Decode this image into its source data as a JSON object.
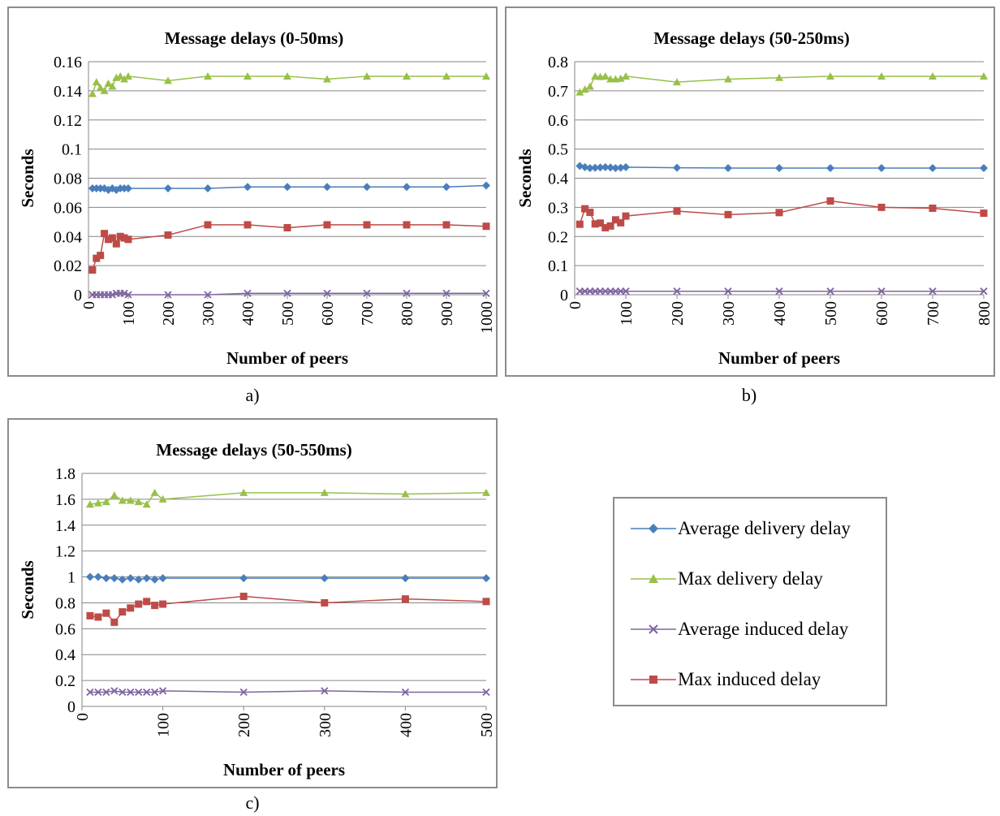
{
  "colors": {
    "avg_delivery": "#4a7ebb",
    "max_delivery": "#98c04a",
    "avg_induced": "#8064a2",
    "max_induced": "#be4b48",
    "grid": "#868686",
    "frame": "#8c8c8c"
  },
  "legend": {
    "placement": "right of panel c",
    "items": [
      {
        "series_key": "avg_delivery",
        "label": "Average delivery delay",
        "marker": "diamond"
      },
      {
        "series_key": "max_delivery",
        "label": "Max delivery delay",
        "marker": "triangle"
      },
      {
        "series_key": "avg_induced",
        "label": "Average induced delay",
        "marker": "x"
      },
      {
        "series_key": "max_induced",
        "label": "Max induced delay",
        "marker": "square"
      }
    ]
  },
  "chart_data": [
    {
      "type": "line",
      "caption": "a)",
      "title": "Message delays (0-50ms)",
      "xlabel": "Number of peers",
      "ylabel": "Seconds",
      "xlim": [
        0,
        1000
      ],
      "ylim": [
        0,
        0.16
      ],
      "xticks": [
        0,
        100,
        200,
        300,
        400,
        500,
        600,
        700,
        800,
        900,
        1000
      ],
      "yticks": [
        0,
        0.02,
        0.04,
        0.06,
        0.08,
        0.1,
        0.12,
        0.14,
        0.16
      ],
      "grid": true,
      "x": [
        10,
        20,
        30,
        40,
        50,
        60,
        70,
        80,
        90,
        100,
        200,
        300,
        400,
        500,
        600,
        700,
        800,
        900,
        1000
      ],
      "series": [
        {
          "key": "avg_delivery",
          "name": "Average delivery delay",
          "values": [
            0.073,
            0.073,
            0.073,
            0.073,
            0.072,
            0.073,
            0.072,
            0.073,
            0.073,
            0.073,
            0.073,
            0.073,
            0.074,
            0.074,
            0.074,
            0.074,
            0.074,
            0.074,
            0.075
          ]
        },
        {
          "key": "max_delivery",
          "name": "Max delivery delay",
          "values": [
            0.138,
            0.146,
            0.142,
            0.14,
            0.145,
            0.143,
            0.149,
            0.15,
            0.148,
            0.15,
            0.147,
            0.15,
            0.15,
            0.15,
            0.148,
            0.15,
            0.15,
            0.15,
            0.15
          ]
        },
        {
          "key": "avg_induced",
          "name": "Average induced delay",
          "values": [
            0.0,
            0.0,
            0.0,
            0.0,
            0.0,
            0.0,
            0.001,
            0.001,
            0.001,
            0.0,
            0.0,
            0.0,
            0.001,
            0.001,
            0.001,
            0.001,
            0.001,
            0.001,
            0.001
          ]
        },
        {
          "key": "max_induced",
          "name": "Max induced delay",
          "values": [
            0.017,
            0.025,
            0.027,
            0.042,
            0.038,
            0.039,
            0.035,
            0.04,
            0.039,
            0.038,
            0.041,
            0.048,
            0.048,
            0.046,
            0.048,
            0.048,
            0.048,
            0.048,
            0.047
          ]
        }
      ]
    },
    {
      "type": "line",
      "caption": "b)",
      "title": "Message delays (50-250ms)",
      "xlabel": "Number of peers",
      "ylabel": "Seconds",
      "xlim": [
        0,
        800
      ],
      "ylim": [
        0,
        0.8
      ],
      "xticks": [
        0,
        100,
        200,
        300,
        400,
        500,
        600,
        700,
        800
      ],
      "yticks": [
        0,
        0.1,
        0.2,
        0.3,
        0.4,
        0.5,
        0.6,
        0.7,
        0.8
      ],
      "grid": true,
      "x": [
        10,
        20,
        30,
        40,
        50,
        60,
        70,
        80,
        90,
        100,
        200,
        300,
        400,
        500,
        600,
        700,
        800
      ],
      "series": [
        {
          "key": "avg_delivery",
          "name": "Average delivery delay",
          "values": [
            0.442,
            0.438,
            0.435,
            0.436,
            0.437,
            0.438,
            0.437,
            0.435,
            0.436,
            0.438,
            0.436,
            0.435,
            0.435,
            0.435,
            0.435,
            0.435,
            0.435
          ]
        },
        {
          "key": "max_delivery",
          "name": "Max delivery delay",
          "values": [
            0.695,
            0.705,
            0.715,
            0.75,
            0.748,
            0.75,
            0.74,
            0.74,
            0.742,
            0.75,
            0.73,
            0.74,
            0.745,
            0.75,
            0.75,
            0.75,
            0.75
          ]
        },
        {
          "key": "avg_induced",
          "name": "Average induced delay",
          "values": [
            0.012,
            0.012,
            0.012,
            0.012,
            0.012,
            0.012,
            0.012,
            0.012,
            0.012,
            0.012,
            0.012,
            0.012,
            0.012,
            0.012,
            0.012,
            0.012,
            0.012
          ]
        },
        {
          "key": "max_induced",
          "name": "Max induced delay",
          "values": [
            0.242,
            0.295,
            0.283,
            0.243,
            0.246,
            0.23,
            0.236,
            0.257,
            0.247,
            0.27,
            0.287,
            0.275,
            0.282,
            0.322,
            0.3,
            0.297,
            0.28
          ]
        }
      ]
    },
    {
      "type": "line",
      "caption": "c)",
      "title": "Message delays (50-550ms)",
      "xlabel": "Number of peers",
      "ylabel": "Seconds",
      "xlim": [
        0,
        500
      ],
      "ylim": [
        0,
        1.8
      ],
      "xticks": [
        0,
        100,
        200,
        300,
        400,
        500
      ],
      "yticks": [
        0,
        0.2,
        0.4,
        0.6,
        0.8,
        1,
        1.2,
        1.4,
        1.6,
        1.8
      ],
      "grid": true,
      "x": [
        10,
        20,
        30,
        40,
        50,
        60,
        70,
        80,
        90,
        100,
        200,
        300,
        400,
        500
      ],
      "series": [
        {
          "key": "avg_delivery",
          "name": "Average delivery delay",
          "values": [
            1.0,
            1.0,
            0.99,
            0.99,
            0.98,
            0.99,
            0.98,
            0.99,
            0.98,
            0.99,
            0.99,
            0.99,
            0.99,
            0.99
          ]
        },
        {
          "key": "max_delivery",
          "name": "Max delivery delay",
          "values": [
            1.56,
            1.57,
            1.58,
            1.63,
            1.59,
            1.59,
            1.58,
            1.56,
            1.65,
            1.6,
            1.65,
            1.65,
            1.64,
            1.65
          ]
        },
        {
          "key": "avg_induced",
          "name": "Average induced delay",
          "values": [
            0.11,
            0.11,
            0.11,
            0.12,
            0.11,
            0.11,
            0.11,
            0.11,
            0.11,
            0.12,
            0.11,
            0.12,
            0.11,
            0.11
          ]
        },
        {
          "key": "max_induced",
          "name": "Max induced delay",
          "values": [
            0.7,
            0.69,
            0.72,
            0.65,
            0.73,
            0.76,
            0.79,
            0.81,
            0.78,
            0.79,
            0.85,
            0.8,
            0.83,
            0.81
          ]
        }
      ]
    }
  ]
}
